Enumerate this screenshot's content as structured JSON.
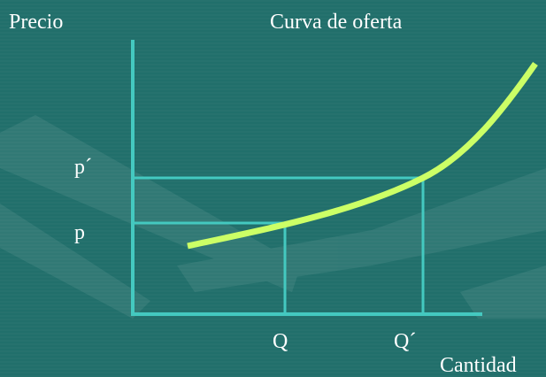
{
  "labels": {
    "y_axis": "Precio",
    "title": "Curva de oferta",
    "price_high": "p´",
    "price_low": "p",
    "quantity_low": "Q",
    "quantity_high": "Q´",
    "x_axis": "Cantidad"
  }
}
